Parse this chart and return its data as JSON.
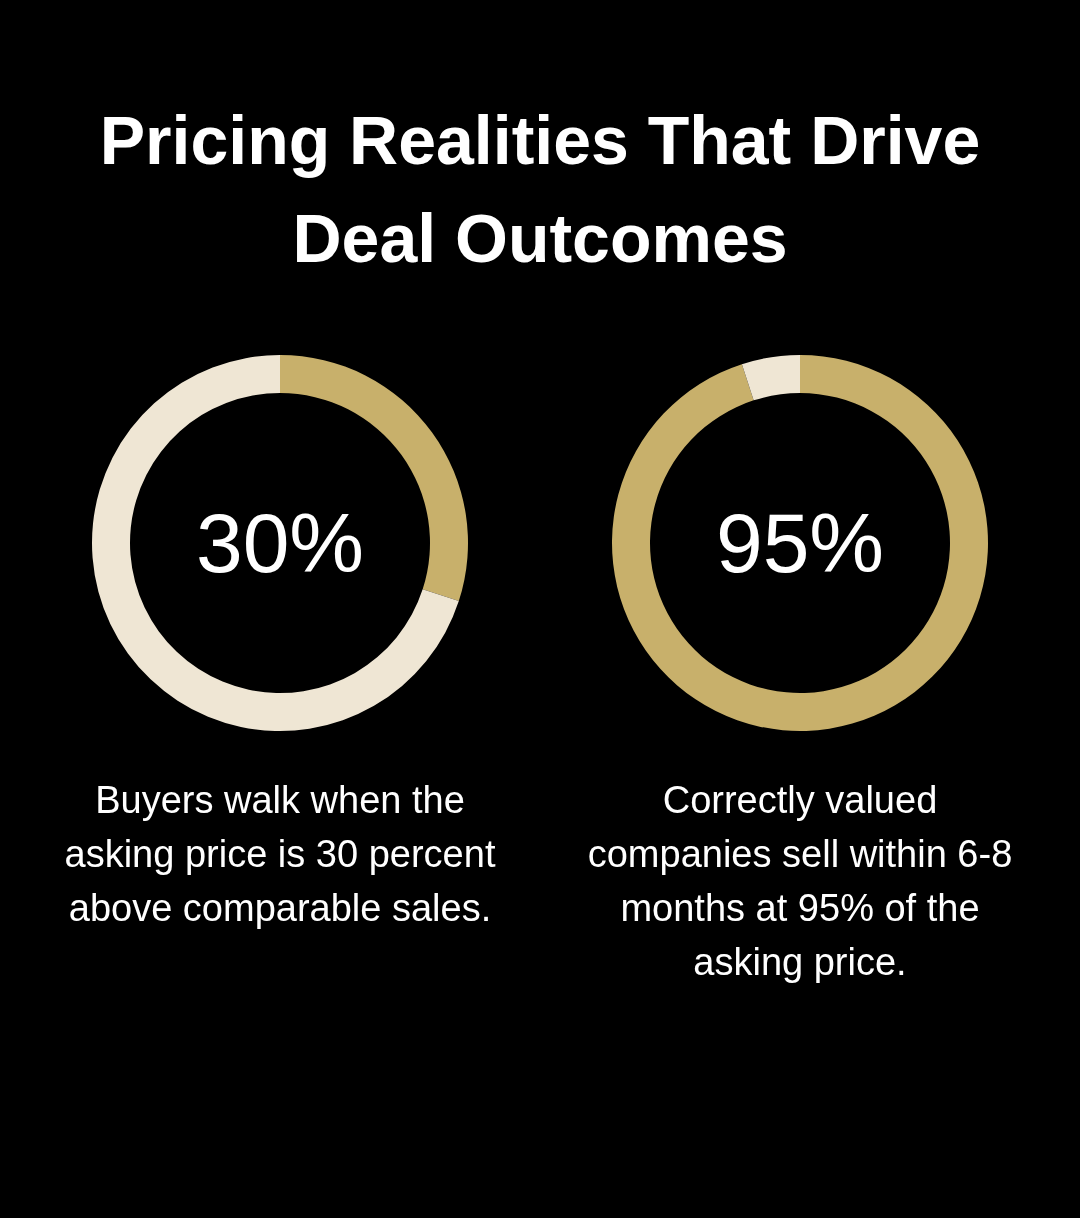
{
  "chart_data": [
    {
      "type": "donut",
      "title": "Pricing Realities That Drive Deal Outcomes",
      "categories": [
        null,
        null
      ],
      "values": [
        30,
        70
      ],
      "colors": [
        "#c8b06b",
        "#efe6d4"
      ],
      "value_labels": [
        "30%",
        null
      ],
      "annotations": [
        "Buyers walk when the asking price is 30 percent above comparable sales."
      ]
    },
    {
      "type": "donut",
      "categories": [
        null,
        null
      ],
      "values": [
        95,
        5
      ],
      "colors": [
        "#c8b06b",
        "#efe6d4"
      ],
      "value_labels": [
        "95%",
        null
      ],
      "annotations": [
        "Correctly valued companies sell within 6-8 months at 95% of the asking price."
      ]
    }
  ]
}
